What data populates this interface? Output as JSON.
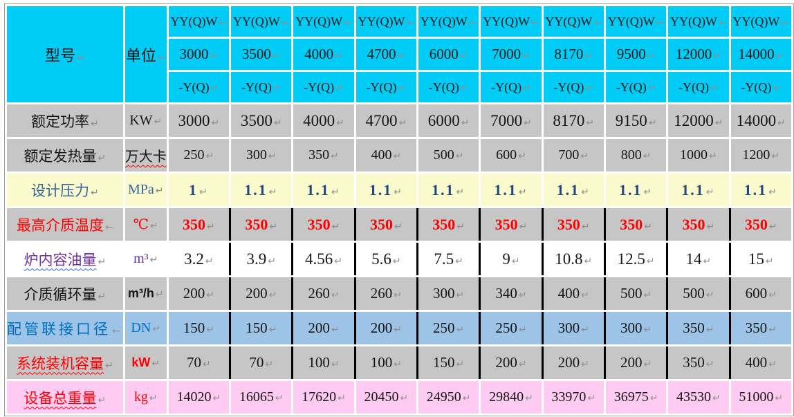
{
  "table": {
    "marks": {
      "return": "↵",
      "wrap": "←",
      "color": "#8f8f8f"
    },
    "border_color": "#9d9d9d",
    "header": {
      "bg": "#00ccf5",
      "model_label": "型号",
      "model_label_mark": "↵",
      "unit_label": "单位",
      "unit_label_mark": "←",
      "series_prefix": "YY(Q)W",
      "series_prefix_mark": "←",
      "series_suffix": "-Y(Q)",
      "series_suffix_mark": "↵",
      "model_value_mark": "↵",
      "models": [
        "3000",
        "3500",
        "4000",
        "4700",
        "6000",
        "7000",
        "8170",
        "9500",
        "12000",
        "14000"
      ]
    },
    "rows": [
      {
        "key": "rated-power",
        "label": "额定功率",
        "label_mark": "↵",
        "label_color": "#151515",
        "unit": "KW",
        "unit_mark": "↵",
        "unit_color": "#151515",
        "bg": "#c6c6c6",
        "values": [
          "3000",
          "3500",
          "4000",
          "4700",
          "6000",
          "7000",
          "8170",
          "9150",
          "12000",
          "14000"
        ],
        "value_color": "#151515",
        "value_bold": false,
        "dark_separators": false
      },
      {
        "key": "rated-heat-output",
        "label": "额定发热量",
        "label_mark": "↵",
        "label_color": "#151515",
        "unit": "万大卡",
        "unit_mark": "",
        "unit_color": "#151515",
        "unit_squiggle": "#ff0000",
        "bg": "#c6c6c6",
        "values": [
          "250",
          "300",
          "350",
          "400",
          "500",
          "600",
          "700",
          "800",
          "1000",
          "1200"
        ],
        "value_color": "#151515",
        "value_bold": false,
        "dark_separators": false
      },
      {
        "key": "design-pressure",
        "label": "设计压力",
        "label_mark": "↵",
        "label_color": "#336699",
        "unit": "MPa",
        "unit_mark": "↵",
        "unit_color": "#336699",
        "bg": "#fafacd",
        "values": [
          "1",
          "1.1",
          "1.1",
          "1.1",
          "1.1",
          "1.1",
          "1.1",
          "1.1",
          "1.1",
          "1.1"
        ],
        "value_color": "#1f497d",
        "value_bold": true,
        "value_spacing": true,
        "dark_separators": false
      },
      {
        "key": "max-medium-temperature",
        "label": "最高介质温度",
        "label_mark": "←",
        "label_color": "#ff0000",
        "unit": "℃",
        "unit_mark": "↵",
        "unit_color": "#ff0000",
        "bg": "#c6c6c6",
        "values": [
          "350",
          "350",
          "350",
          "350",
          "350",
          "350",
          "350",
          "350",
          "350",
          "350"
        ],
        "value_color": "#ff0000",
        "value_bold": true,
        "dark_separators": true
      },
      {
        "key": "furnace-oil-volume",
        "label": "炉内容油量",
        "label_mark": "↵",
        "label_color": "#7030a0",
        "label_squiggle": "#3366ff",
        "unit": "m³",
        "unit_mark": "↵",
        "unit_color": "#7030a0",
        "bg": "#ffffff",
        "values": [
          "3.2",
          "3.9",
          "4.56",
          "5.6",
          "7.5",
          "9",
          "10.8",
          "12.5",
          "14",
          "15"
        ],
        "value_color": "#151515",
        "value_bold": false,
        "dark_separators": true
      },
      {
        "key": "medium-circulation",
        "label": "介质循环量",
        "label_mark": "↵",
        "label_color": "#151515",
        "unit": "m³/h",
        "unit_mark": "↵",
        "unit_color": "#151515",
        "unit_sans": true,
        "bg": "#c6c6c6",
        "values": [
          "200",
          "200",
          "260",
          "260",
          "300",
          "340",
          "400",
          "500",
          "500",
          "600"
        ],
        "value_color": "#151515",
        "value_bold": false,
        "dark_separators": true
      },
      {
        "key": "pipe-connection-diameter",
        "label": "配管联接口径",
        "label_mark": "←",
        "label_color": "#0070c0",
        "label_spacing": true,
        "unit": "DN",
        "unit_mark": "↵",
        "unit_color": "#0070c0",
        "bg": "#9dc3e6",
        "values": [
          "150",
          "150",
          "200",
          "200",
          "250",
          "250",
          "300",
          "300",
          "350",
          "350"
        ],
        "value_color": "#151515",
        "value_bold": false,
        "dark_separators": true
      },
      {
        "key": "system-installed-capacity",
        "label": "系统装机容量",
        "label_mark": "↵",
        "label_color": "#ff0000",
        "label_squiggle": "#ff0000",
        "unit": "kW",
        "unit_mark": "↵",
        "unit_color": "#ff0000",
        "unit_sans": true,
        "bg": "#c6c6c6",
        "values": [
          "70",
          "70",
          "100",
          "100",
          "150",
          "200",
          "200",
          "200",
          "350",
          "400"
        ],
        "value_color": "#151515",
        "value_bold": false,
        "dark_separators": true
      },
      {
        "key": "total-equipment-weight",
        "label": "设备总重量",
        "label_mark": "↵",
        "label_color": "#ff0000",
        "label_squiggle": "#ff0000",
        "unit": "kg",
        "unit_mark": "↵",
        "unit_color": "#ff0000",
        "bg": "#ffcbf3",
        "values": [
          "14020",
          "16065",
          "17620",
          "20450",
          "24950",
          "29840",
          "33970",
          "36975",
          "43530",
          "51000"
        ],
        "value_color": "#151515",
        "value_bold": false,
        "dark_separators": false
      }
    ]
  }
}
